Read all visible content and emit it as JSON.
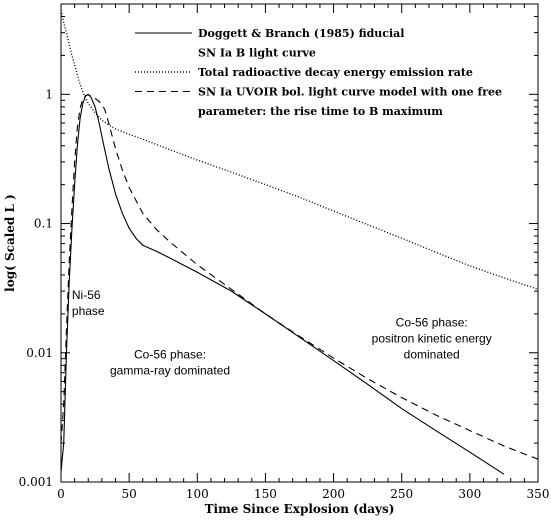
{
  "chart_data": {
    "type": "line",
    "xlabel": "Time Since Explosion (days)",
    "ylabel": "log( Scaled L )",
    "xlim": [
      0,
      350
    ],
    "ylim": [
      0.001,
      5
    ],
    "yscale": "log",
    "x_ticks": [
      0,
      50,
      100,
      150,
      200,
      250,
      300,
      350
    ],
    "x_tick_labels": [
      "0",
      "50",
      "100",
      "150",
      "200",
      "250",
      "300",
      "350"
    ],
    "y_ticks": [
      0.001,
      0.01,
      0.1,
      1
    ],
    "y_tick_labels": [
      "0.001",
      "0.01",
      "0.1",
      "1"
    ],
    "grid": false,
    "legend_position": "top-right",
    "series": [
      {
        "name": "Doggett & Branch (1985) fiducial SN Ia B light curve",
        "legend_lines": [
          "Doggett & Branch (1985) fiducial",
          "SN Ia B light curve"
        ],
        "style": "solid",
        "x": [
          0,
          2,
          4,
          6,
          8,
          10,
          12,
          14,
          16,
          18,
          20,
          22,
          25,
          28,
          31,
          35,
          40,
          45,
          50,
          55,
          60,
          70,
          80,
          100,
          125,
          150,
          175,
          200,
          225,
          250,
          275,
          300,
          325
        ],
        "y": [
          0.0012,
          0.002,
          0.01,
          0.035,
          0.09,
          0.2,
          0.4,
          0.65,
          0.85,
          0.97,
          1.0,
          0.95,
          0.8,
          0.6,
          0.42,
          0.27,
          0.17,
          0.12,
          0.092,
          0.077,
          0.068,
          0.061,
          0.054,
          0.042,
          0.03,
          0.02,
          0.0132,
          0.0087,
          0.0057,
          0.0037,
          0.0025,
          0.0017,
          0.00115
        ]
      },
      {
        "name": "Total radioactive decay energy emission rate",
        "legend_lines": [
          "Total radioactive decay energy emission rate"
        ],
        "style": "dotted",
        "x": [
          0,
          2,
          5,
          8,
          11,
          14,
          17,
          20,
          25,
          30,
          35,
          40,
          50,
          60,
          75,
          100,
          125,
          150,
          175,
          200,
          225,
          250,
          275,
          300,
          325,
          350
        ],
        "y": [
          4.5,
          3.6,
          2.7,
          2.0,
          1.55,
          1.2,
          0.98,
          0.85,
          0.72,
          0.63,
          0.58,
          0.54,
          0.49,
          0.45,
          0.39,
          0.31,
          0.25,
          0.2,
          0.16,
          0.125,
          0.098,
          0.077,
          0.06,
          0.047,
          0.038,
          0.031
        ]
      },
      {
        "name": "SN Ia UVOIR bol. light curve model with one free parameter: the rise time to B maximum",
        "legend_lines": [
          "SN Ia UVOIR bol. light curve model with one free",
          "parameter:  the rise time to B maximum"
        ],
        "style": "dashed",
        "x": [
          0,
          2,
          4,
          6,
          8,
          10,
          12,
          14,
          16,
          18,
          20,
          22,
          25,
          28,
          32,
          35,
          40,
          45,
          50,
          60,
          70,
          80,
          100,
          125,
          150,
          175,
          200,
          225,
          250,
          275,
          300,
          325,
          350
        ],
        "y": [
          0.002,
          0.004,
          0.015,
          0.05,
          0.13,
          0.3,
          0.55,
          0.78,
          0.92,
          0.98,
          0.99,
          0.97,
          0.93,
          0.88,
          0.77,
          0.6,
          0.38,
          0.26,
          0.19,
          0.12,
          0.09,
          0.072,
          0.048,
          0.031,
          0.02,
          0.0134,
          0.0091,
          0.0063,
          0.0045,
          0.0033,
          0.0025,
          0.0019,
          0.0015
        ]
      }
    ],
    "annotations": [
      {
        "lines": [
          "Ni-56",
          "phase"
        ],
        "x": 8,
        "y": 0.026,
        "align": "start"
      },
      {
        "lines": [
          "Co-56 phase:",
          "gamma-ray dominated"
        ],
        "x": 80,
        "y": 0.009,
        "align": "middle"
      },
      {
        "lines": [
          "Co-56 phase:",
          "positron kinetic energy",
          "dominated"
        ],
        "x": 272,
        "y": 0.016,
        "align": "middle"
      }
    ]
  }
}
